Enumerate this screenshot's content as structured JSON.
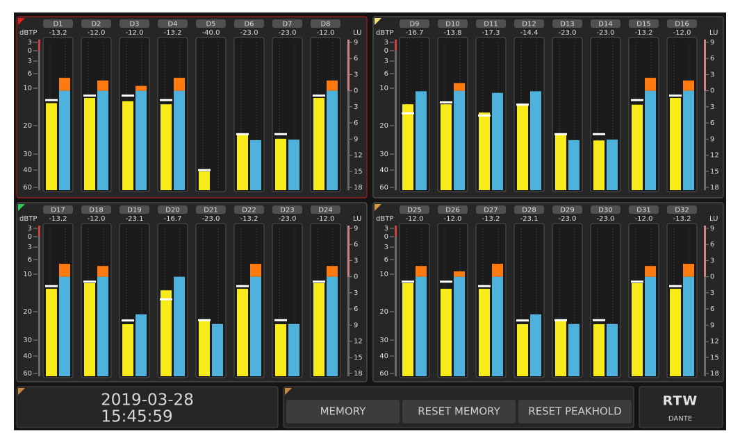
{
  "scales": {
    "dbtp": {
      "label": "dBTP",
      "ticks": [
        3,
        0,
        {
          "value": -3,
          "label": "3"
        },
        {
          "value": -6,
          "label": "6"
        },
        {
          "value": -10,
          "label": "10"
        },
        {
          "value": -20,
          "label": "20"
        },
        {
          "value": -30,
          "label": "30"
        },
        {
          "value": -40,
          "label": "40"
        },
        {
          "value": -60,
          "label": "60"
        }
      ]
    },
    "lu": {
      "label": "LU",
      "ticks": [
        9,
        6,
        3,
        0,
        {
          "value": -3,
          "label": "3"
        },
        {
          "value": -6,
          "label": "6"
        },
        {
          "value": -9,
          "label": "9"
        },
        {
          "value": -12,
          "label": "12"
        },
        {
          "value": -15,
          "label": "15"
        },
        {
          "value": -18,
          "label": "18"
        }
      ]
    }
  },
  "panels": [
    {
      "color": "#e0201c",
      "channels": [
        {
          "name": "D1",
          "peak": {
            "value": -13.2,
            "label": "-13.2"
          },
          "level": -14,
          "loudness": 2.4
        },
        {
          "name": "D2",
          "peak": {
            "value": -12,
            "label": "-12.0"
          },
          "level": -12.6,
          "loudness": 1.9
        },
        {
          "name": "D3",
          "peak": {
            "value": -12,
            "label": "-12.0"
          },
          "level": -13.5,
          "loudness": 0.9
        },
        {
          "name": "D4",
          "peak": {
            "value": -13.2,
            "label": "-13.2"
          },
          "level": -14.3,
          "loudness": 2.4
        },
        {
          "name": "D5",
          "peak": {
            "value": -40,
            "label": "-40.0"
          },
          "level": -41.5,
          "loudness": null
        },
        {
          "name": "D6",
          "peak": {
            "value": -23,
            "label": "-23.0"
          },
          "level": -22.9,
          "loudness": -9.2
        },
        {
          "name": "D7",
          "peak": {
            "value": -23,
            "label": "-23.0"
          },
          "level": -24.6,
          "loudness": -9.1
        },
        {
          "name": "D8",
          "peak": {
            "value": -12,
            "label": "-12.0"
          },
          "level": -12.6,
          "loudness": 1.9
        }
      ]
    },
    {
      "color": "#f2e27a",
      "channels": [
        {
          "name": "D9",
          "peak": {
            "value": -16.7,
            "label": "-16.7"
          },
          "level": -14.3,
          "loudness": -0.1
        },
        {
          "name": "D10",
          "peak": {
            "value": -13.8,
            "label": "-13.8"
          },
          "level": -14.3,
          "loudness": 1.4
        },
        {
          "name": "D11",
          "peak": {
            "value": -17.3,
            "label": "-17.3"
          },
          "level": -16.5,
          "loudness": -0.4
        },
        {
          "name": "D12",
          "peak": {
            "value": -14.4,
            "label": "-14.4"
          },
          "level": -14.6,
          "loudness": -0.1
        },
        {
          "name": "D13",
          "peak": {
            "value": -23,
            "label": "-23.0"
          },
          "level": -23.2,
          "loudness": -9.2
        },
        {
          "name": "D14",
          "peak": {
            "value": -23,
            "label": "-23.0"
          },
          "level": -25.2,
          "loudness": -9.1
        },
        {
          "name": "D15",
          "peak": {
            "value": -13.2,
            "label": "-13.2"
          },
          "level": -14.4,
          "loudness": 2.4
        },
        {
          "name": "D16",
          "peak": {
            "value": -12,
            "label": "-12.0"
          },
          "level": -12.6,
          "loudness": 1.9
        }
      ]
    },
    {
      "color": "#2ecc55",
      "channels": [
        {
          "name": "D17",
          "peak": {
            "value": -13.2,
            "label": "-13.2"
          },
          "level": -13.9,
          "loudness": 2.4
        },
        {
          "name": "D18",
          "peak": {
            "value": -12,
            "label": "-12.0"
          },
          "level": -12.4,
          "loudness": 2.0
        },
        {
          "name": "D19",
          "peak": {
            "value": -23.1,
            "label": "-23.1"
          },
          "level": -24.4,
          "loudness": -7.0
        },
        {
          "name": "D20",
          "peak": {
            "value": -16.7,
            "label": "-16.7"
          },
          "level": -14.3,
          "loudness": 0
        },
        {
          "name": "D21",
          "peak": {
            "value": -23,
            "label": "-23.0"
          },
          "level": -22.7,
          "loudness": -8.8
        },
        {
          "name": "D22",
          "peak": {
            "value": -13.2,
            "label": "-13.2"
          },
          "level": -13.9,
          "loudness": 2.4
        },
        {
          "name": "D23",
          "peak": {
            "value": -23,
            "label": "-23.0"
          },
          "level": -24.4,
          "loudness": -8.8
        },
        {
          "name": "D24",
          "peak": {
            "value": -12,
            "label": "-12.0"
          },
          "level": -12.4,
          "loudness": 2.0
        }
      ]
    },
    {
      "color": "#d9963a",
      "channels": [
        {
          "name": "D25",
          "peak": {
            "value": -12,
            "label": "-12.0"
          },
          "level": -12.4,
          "loudness": 2.0
        },
        {
          "name": "D26",
          "peak": {
            "value": -12,
            "label": "-12.0"
          },
          "level": -13.9,
          "loudness": 1.0
        },
        {
          "name": "D27",
          "peak": {
            "value": -13.2,
            "label": "-13.2"
          },
          "level": -13.9,
          "loudness": 2.4
        },
        {
          "name": "D28",
          "peak": {
            "value": -23.1,
            "label": "-23.1"
          },
          "level": -24.4,
          "loudness": -7.0
        },
        {
          "name": "D29",
          "peak": {
            "value": -23,
            "label": "-23.0"
          },
          "level": -22.7,
          "loudness": -8.8
        },
        {
          "name": "D30",
          "peak": {
            "value": -23,
            "label": "-23.0"
          },
          "level": -24.4,
          "loudness": -8.8
        },
        {
          "name": "D31",
          "peak": {
            "value": -12,
            "label": "-12.0"
          },
          "level": -12.4,
          "loudness": 2.0
        },
        {
          "name": "D32",
          "peak": {
            "value": -13.2,
            "label": "-13.2"
          },
          "level": -13.9,
          "loudness": 2.4
        }
      ]
    }
  ],
  "clock": {
    "date": "2019-03-28",
    "time": "15:45:59"
  },
  "buttons": [
    "MEMORY",
    "RESET MEMORY",
    "RESET PEAKHOLD"
  ],
  "logo": {
    "brand": "RTW",
    "sub": "DANTE"
  }
}
